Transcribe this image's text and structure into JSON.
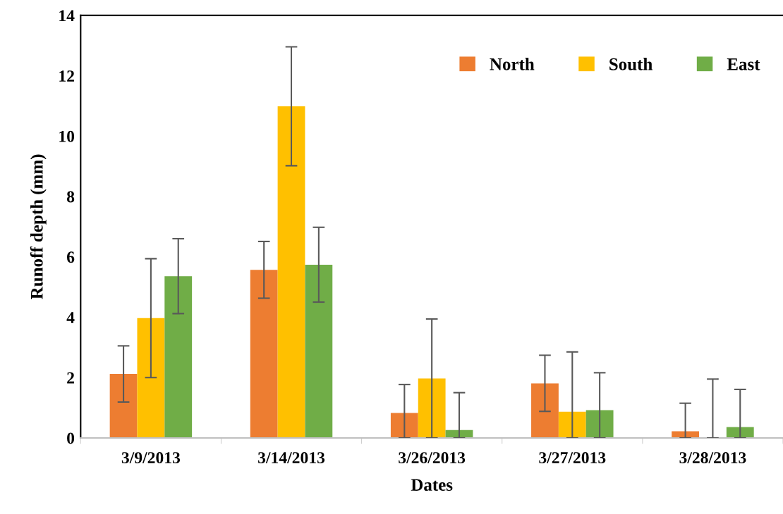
{
  "chart_data": {
    "type": "bar",
    "xlabel": "Dates",
    "ylabel": "Runoff depth (mm)",
    "categories": [
      "3/9/2013",
      "3/14/2013",
      "3/26/2013",
      "3/27/2013",
      "3/28/2013"
    ],
    "series": [
      {
        "name": "North",
        "color": "#ed7d31",
        "values": [
          2.12,
          5.57,
          0.83,
          1.81,
          0.22
        ],
        "errors": [
          0.93,
          0.94,
          [
            0,
            1.77
          ],
          0.93,
          [
            0,
            1.15
          ]
        ]
      },
      {
        "name": "South",
        "color": "#ffc000",
        "values": [
          3.97,
          10.99,
          1.97,
          0.87,
          0
        ],
        "errors": [
          1.97,
          1.97,
          [
            0,
            3.94
          ],
          [
            0,
            2.85
          ],
          [
            0,
            1.95
          ]
        ]
      },
      {
        "name": "East",
        "color": "#70ad47",
        "values": [
          5.36,
          5.74,
          0.26,
          0.92,
          0.36
        ],
        "errors": [
          1.24,
          1.24,
          [
            0,
            1.5
          ],
          [
            0,
            2.16
          ],
          [
            0,
            1.61
          ]
        ]
      }
    ],
    "ylim": [
      0,
      14
    ],
    "yticks": [
      0,
      2,
      4,
      6,
      8,
      10,
      12,
      14
    ],
    "grid": false,
    "legend": "top right"
  }
}
